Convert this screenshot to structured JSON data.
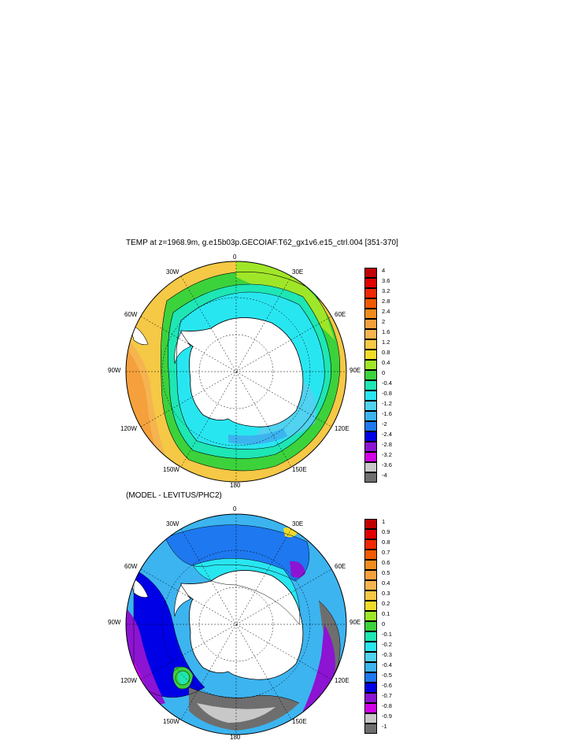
{
  "top": {
    "title": "TEMP at z=1968.9m, g.e15b03p.GECOIAF.T62_gx1v6.e15_ctrl.004 [351-370]",
    "lon_labels": {
      "n0": "0",
      "n30e": "30E",
      "n60e": "60E",
      "n90e": "90E",
      "n120e": "120E",
      "n150e": "150E",
      "n180": "180",
      "n150w": "150W",
      "n120w": "120W",
      "n90w": "90W",
      "n60w": "60W",
      "n30w": "30W"
    },
    "colorbar": {
      "labels": [
        "4",
        "3.6",
        "3.2",
        "2.8",
        "2.4",
        "2",
        "1.6",
        "1.2",
        "0.8",
        "0.4",
        "0",
        "-0.4",
        "-0.8",
        "-1.2",
        "-1.6",
        "-2",
        "-2.4",
        "-2.8",
        "-3.2",
        "-3.6",
        "-4"
      ],
      "colors": [
        "#c00000",
        "#e00000",
        "#f02800",
        "#f05a00",
        "#f08c1e",
        "#f5a03c",
        "#f5b450",
        "#f5c846",
        "#f0dc28",
        "#a0e628",
        "#3cd23c",
        "#1ee6b4",
        "#28e6f0",
        "#50d2f0",
        "#3cb4f0",
        "#1e78f0",
        "#0000e6",
        "#8c14d2",
        "#d200e6",
        "#c8c8c8",
        "#6e6e6e"
      ]
    }
  },
  "bottom": {
    "title": "(MODEL - LEVITUS/PHC2)",
    "lon_labels": {
      "n0": "0",
      "n30e": "30E",
      "n60e": "60E",
      "n90e": "90E",
      "n120e": "120E",
      "n150e": "150E",
      "n180": "180",
      "n150w": "150W",
      "n120w": "120W",
      "n90w": "90W",
      "n60w": "60W",
      "n30w": "30W"
    },
    "colorbar": {
      "labels": [
        "1",
        "0.9",
        "0.8",
        "0.7",
        "0.6",
        "0.5",
        "0.4",
        "0.3",
        "0.2",
        "0.1",
        "0",
        "-0.1",
        "-0.2",
        "-0.3",
        "-0.4",
        "-0.5",
        "-0.6",
        "-0.7",
        "-0.8",
        "-0.9",
        "-1"
      ],
      "colors": [
        "#c00000",
        "#e00000",
        "#f02800",
        "#f05a00",
        "#f08c1e",
        "#f5a03c",
        "#f5b450",
        "#f5c846",
        "#f0dc28",
        "#a0e628",
        "#3cd23c",
        "#1ee6b4",
        "#28e6f0",
        "#50d2f0",
        "#3cb4f0",
        "#1e78f0",
        "#0000e6",
        "#8c14d2",
        "#d200e6",
        "#c8c8c8",
        "#6e6e6e"
      ]
    }
  }
}
